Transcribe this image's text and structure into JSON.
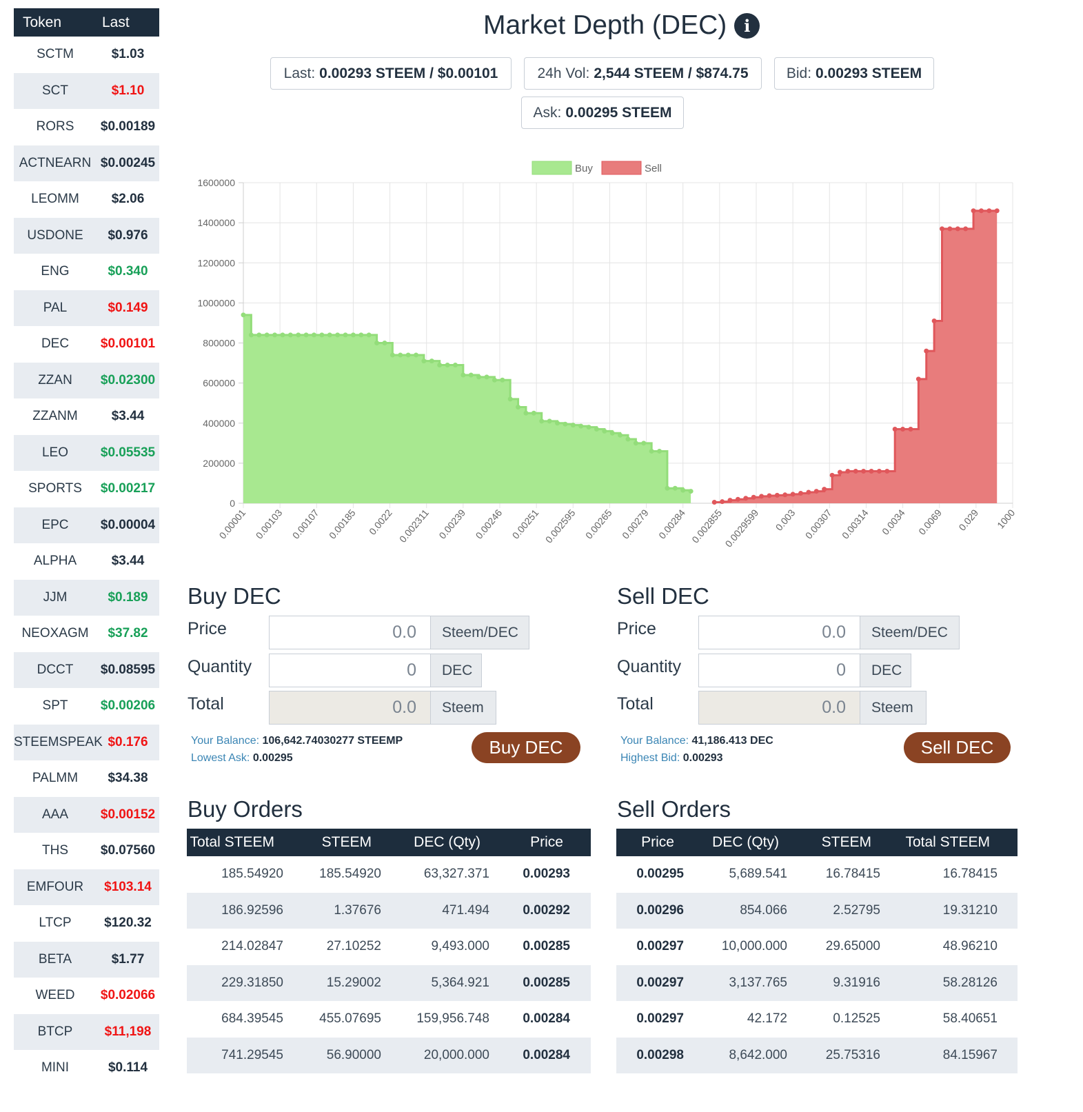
{
  "sidebar": {
    "header_token": "Token",
    "header_last": "Last",
    "tokens": [
      {
        "name": "SCTM",
        "last": "$1.03",
        "color": "#22303f"
      },
      {
        "name": "SCT",
        "last": "$1.10",
        "color": "#f01414"
      },
      {
        "name": "RORS",
        "last": "$0.00189",
        "color": "#22303f"
      },
      {
        "name": "ACTNEARN",
        "last": "$0.00245",
        "color": "#22303f"
      },
      {
        "name": "LEOMM",
        "last": "$2.06",
        "color": "#22303f"
      },
      {
        "name": "USDONE",
        "last": "$0.976",
        "color": "#22303f"
      },
      {
        "name": "ENG",
        "last": "$0.340",
        "color": "#18a058"
      },
      {
        "name": "PAL",
        "last": "$0.149",
        "color": "#f01414"
      },
      {
        "name": "DEC",
        "last": "$0.00101",
        "color": "#f01414"
      },
      {
        "name": "ZZAN",
        "last": "$0.02300",
        "color": "#18a058"
      },
      {
        "name": "ZZANM",
        "last": "$3.44",
        "color": "#22303f"
      },
      {
        "name": "LEO",
        "last": "$0.05535",
        "color": "#18a058"
      },
      {
        "name": "SPORTS",
        "last": "$0.00217",
        "color": "#18a058"
      },
      {
        "name": "EPC",
        "last": "$0.00004",
        "color": "#22303f"
      },
      {
        "name": "ALPHA",
        "last": "$3.44",
        "color": "#22303f"
      },
      {
        "name": "JJM",
        "last": "$0.189",
        "color": "#18a058"
      },
      {
        "name": "NEOXAGM",
        "last": "$37.82",
        "color": "#18a058"
      },
      {
        "name": "DCCT",
        "last": "$0.08595",
        "color": "#22303f"
      },
      {
        "name": "SPT",
        "last": "$0.00206",
        "color": "#18a058"
      },
      {
        "name": "STEEMSPEAK",
        "last": "$0.176",
        "color": "#f01414"
      },
      {
        "name": "PALMM",
        "last": "$34.38",
        "color": "#22303f"
      },
      {
        "name": "AAA",
        "last": "$0.00152",
        "color": "#f01414"
      },
      {
        "name": "THS",
        "last": "$0.07560",
        "color": "#22303f"
      },
      {
        "name": "EMFOUR",
        "last": "$103.14",
        "color": "#f01414"
      },
      {
        "name": "LTCP",
        "last": "$120.32",
        "color": "#22303f"
      },
      {
        "name": "BETA",
        "last": "$1.77",
        "color": "#22303f"
      },
      {
        "name": "WEED",
        "last": "$0.02066",
        "color": "#f01414"
      },
      {
        "name": "BTCP",
        "last": "$11,198",
        "color": "#f01414"
      },
      {
        "name": "MINI",
        "last": "$0.114",
        "color": "#22303f"
      }
    ]
  },
  "header": {
    "title": "Market Depth (DEC)",
    "info_icon": "info-circle-icon",
    "last_label": "Last:",
    "last_value": "0.00293 STEEM / $0.00101",
    "vol_label": "24h Vol:",
    "vol_value": "2,544 STEEM / $874.75",
    "bid_label": "Bid:",
    "bid_value": "0.00293 STEEM",
    "ask_label": "Ask:",
    "ask_value": "0.00295 STEEM"
  },
  "chart_data": {
    "type": "area",
    "legend": [
      "Buy",
      "Sell"
    ],
    "colors": {
      "buy_fill": "#a8e890",
      "buy_line": "#93dd7a",
      "sell_fill": "#e87c7c",
      "sell_line": "#e0575b"
    },
    "ylim": [
      0,
      1600000
    ],
    "y_ticks": [
      0,
      200000,
      400000,
      600000,
      800000,
      1000000,
      1200000,
      1400000,
      1600000
    ],
    "x_tick_labels": [
      "0.00001",
      "0.00103",
      "0.00107",
      "0.00185",
      "0.0022",
      "0.002311",
      "0.00239",
      "0.00246",
      "0.00251",
      "0.002595",
      "0.00265",
      "0.00279",
      "0.00284",
      "0.002855",
      "0.0029599",
      "0.003",
      "0.00307",
      "0.00314",
      "0.0034",
      "0.0069",
      "0.029",
      "1000"
    ],
    "series": [
      {
        "name": "Buy",
        "values": [
          940000,
          840000,
          840000,
          840000,
          840000,
          840000,
          840000,
          840000,
          840000,
          840000,
          840000,
          840000,
          840000,
          840000,
          840000,
          840000,
          840000,
          800000,
          800000,
          740000,
          740000,
          740000,
          740000,
          710000,
          710000,
          690000,
          690000,
          690000,
          640000,
          640000,
          630000,
          630000,
          615000,
          615000,
          520000,
          480000,
          450000,
          450000,
          410000,
          410000,
          400000,
          395000,
          390000,
          385000,
          380000,
          370000,
          360000,
          350000,
          340000,
          320000,
          300000,
          300000,
          260000,
          260000,
          75000,
          75000,
          65000,
          60000
        ]
      },
      {
        "name": "Sell",
        "values": [
          5000,
          8000,
          15000,
          20000,
          25000,
          30000,
          35000,
          38000,
          40000,
          42000,
          45000,
          50000,
          55000,
          60000,
          70000,
          140000,
          155000,
          160000,
          160000,
          160000,
          160000,
          160000,
          160000,
          370000,
          370000,
          370000,
          620000,
          760000,
          910000,
          1370000,
          1370000,
          1370000,
          1370000,
          1460000,
          1460000,
          1460000,
          1460000
        ]
      }
    ]
  },
  "buy_form": {
    "title": "Buy DEC",
    "price_label": "Price",
    "price_value": "0.0",
    "price_unit": "Steem/DEC",
    "qty_label": "Quantity",
    "qty_value": "0",
    "qty_unit": "DEC",
    "total_label": "Total",
    "total_value": "0.0",
    "total_unit": "Steem",
    "balance_label": "Your Balance:",
    "balance_value": "106,642.74030277 STEEMP",
    "market_label": "Lowest Ask:",
    "market_value": "0.00295",
    "button_label": "Buy DEC"
  },
  "sell_form": {
    "title": "Sell DEC",
    "price_label": "Price",
    "price_value": "0.0",
    "price_unit": "Steem/DEC",
    "qty_label": "Quantity",
    "qty_value": "0",
    "qty_unit": "DEC",
    "total_label": "Total",
    "total_value": "0.0",
    "total_unit": "Steem",
    "balance_label": "Your Balance:",
    "balance_value": "41,186.413 DEC",
    "market_label": "Highest Bid:",
    "market_value": "0.00293",
    "button_label": "Sell DEC"
  },
  "buy_orders": {
    "title": "Buy Orders",
    "columns": [
      "Total STEEM",
      "STEEM",
      "DEC (Qty)",
      "Price"
    ],
    "rows": [
      [
        "185.54920",
        "185.54920",
        "63,327.371",
        "0.00293"
      ],
      [
        "186.92596",
        "1.37676",
        "471.494",
        "0.00292"
      ],
      [
        "214.02847",
        "27.10252",
        "9,493.000",
        "0.00285"
      ],
      [
        "229.31850",
        "15.29002",
        "5,364.921",
        "0.00285"
      ],
      [
        "684.39545",
        "455.07695",
        "159,956.748",
        "0.00284"
      ],
      [
        "741.29545",
        "56.90000",
        "20,000.000",
        "0.00284"
      ]
    ]
  },
  "sell_orders": {
    "title": "Sell Orders",
    "columns": [
      "Price",
      "DEC (Qty)",
      "STEEM",
      "Total STEEM"
    ],
    "rows": [
      [
        "0.00295",
        "5,689.541",
        "16.78415",
        "16.78415"
      ],
      [
        "0.00296",
        "854.066",
        "2.52795",
        "19.31210"
      ],
      [
        "0.00297",
        "10,000.000",
        "29.65000",
        "48.96210"
      ],
      [
        "0.00297",
        "3,137.765",
        "9.31916",
        "58.28126"
      ],
      [
        "0.00297",
        "42.172",
        "0.12525",
        "58.40651"
      ],
      [
        "0.00298",
        "8,642.000",
        "25.75316",
        "84.15967"
      ]
    ]
  }
}
